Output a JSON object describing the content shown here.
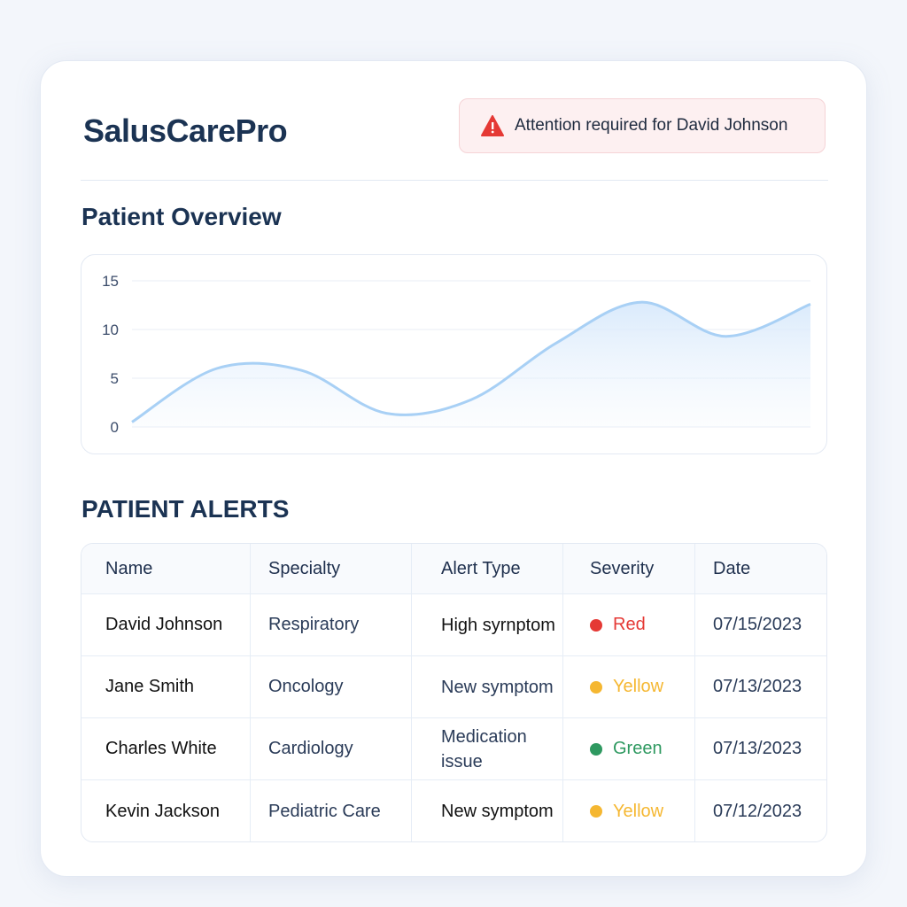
{
  "app": {
    "title": "SalusCarePro"
  },
  "banner": {
    "icon": "warning-triangle-icon",
    "text": "Attention required for David Johnson",
    "color": "#e53935"
  },
  "overview": {
    "title": "Patient Overview"
  },
  "chart_data": {
    "type": "area",
    "title": "",
    "xlabel": "",
    "ylabel": "",
    "ylim": [
      0,
      15
    ],
    "yticks": [
      0,
      5,
      10,
      15
    ],
    "grid": true,
    "color": "#a8d0f5",
    "values": [
      0.5,
      6.0,
      5.8,
      1.4,
      2.8,
      8.6,
      12.8,
      9.3,
      12.6
    ]
  },
  "alerts": {
    "title": "PATIENT ALERTS",
    "columns": [
      "Name",
      "Specialty",
      "Alert Type",
      "Severity",
      "Date"
    ],
    "rows": [
      {
        "name": "David Johnson",
        "specialty": "Respiratory",
        "alert_type": "High syrnptom",
        "severity": "Red",
        "color": "#e53935",
        "date": "07/15/2023"
      },
      {
        "name": "Jane Smith",
        "specialty": "Oncology",
        "alert_type": "New symptom",
        "severity": "Yellow",
        "color": "#f5b731",
        "date": "07/13/2023"
      },
      {
        "name": "Charles White",
        "specialty": "Cardiology",
        "alert_type": "Medication issue",
        "severity": "Green",
        "color": "#2e9960",
        "date": "07/13/2023"
      },
      {
        "name": "Kevin Jackson",
        "specialty": "Pediatric Care",
        "alert_type": "New symptom",
        "severity": "Yellow",
        "color": "#f5b731",
        "date": "07/12/2023"
      }
    ]
  }
}
